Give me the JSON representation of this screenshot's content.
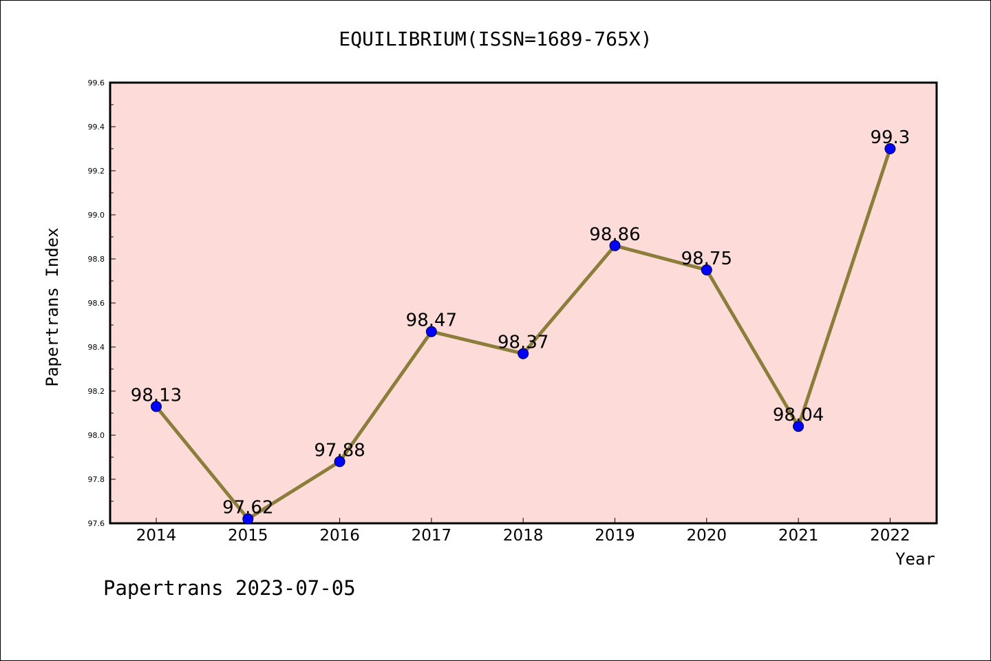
{
  "chart_data": {
    "type": "line",
    "title": "EQUILIBRIUM(ISSN=1689-765X)",
    "xlabel": "Year",
    "ylabel": "Papertrans Index",
    "categories": [
      "2014",
      "2015",
      "2016",
      "2017",
      "2018",
      "2019",
      "2020",
      "2021",
      "2022"
    ],
    "series": [
      {
        "values": [
          98.13,
          97.62,
          97.88,
          98.47,
          98.37,
          98.86,
          98.75,
          98.04,
          99.3
        ],
        "labels": [
          "98.13",
          "97.62",
          "97.88",
          "98.47",
          "98.37",
          "98.86",
          "98.75",
          "98.04",
          "99.3"
        ]
      }
    ],
    "ylim": [
      97.6,
      99.6
    ],
    "yticks": [
      "97.6",
      "97.8",
      "98.0",
      "98.2",
      "98.4",
      "98.6",
      "98.8",
      "99.0",
      "99.2",
      "99.4",
      "99.6"
    ],
    "grid": false,
    "colors": {
      "plot_background": "#fddbd8",
      "line": "#8b7d3a",
      "marker": "#0000ff"
    }
  },
  "footer": "Papertrans 2023-07-05"
}
